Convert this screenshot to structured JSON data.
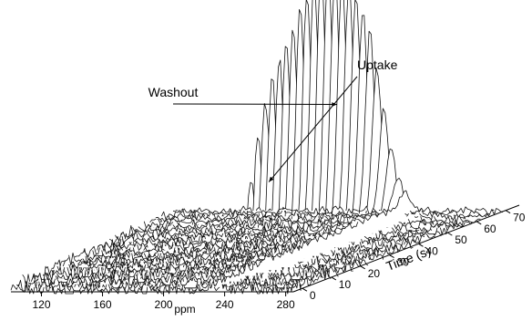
{
  "chart_data": {
    "type": "line",
    "subtype": "stacked-3d-waterfall",
    "title": "",
    "xlabel": "ppm",
    "x_ticks": [
      "120",
      "160",
      "200",
      "240",
      "280"
    ],
    "xlim": [
      100,
      285
    ],
    "zlabel": "Time (s)",
    "z_ticks": [
      "0",
      "10",
      "20",
      "30",
      "40",
      "50",
      "60",
      "70"
    ],
    "zlim": [
      0,
      70
    ],
    "peak_position_ppm": 230,
    "annotations": [
      {
        "text": "Washout",
        "points_to_time_s": 47
      },
      {
        "text": "Uptake",
        "points_to_time_s": 20
      }
    ],
    "series_times_s": [
      0,
      2.5,
      5,
      7.5,
      10,
      12.5,
      15,
      17.5,
      20,
      22.5,
      25,
      27.5,
      30,
      32.5,
      35,
      37.5,
      40,
      42.5,
      45,
      47.5,
      50,
      52.5,
      55,
      57.5,
      60,
      62.5,
      65,
      67.5,
      70
    ],
    "peak_heights_relative": [
      0.02,
      0.03,
      0.05,
      0.08,
      0.14,
      0.22,
      0.34,
      0.48,
      0.6,
      0.68,
      0.73,
      0.78,
      0.83,
      0.88,
      0.93,
      0.97,
      1.0,
      0.99,
      0.96,
      0.93,
      0.9,
      0.86,
      0.78,
      0.7,
      0.55,
      0.4,
      0.25,
      0.13,
      0.07
    ]
  }
}
